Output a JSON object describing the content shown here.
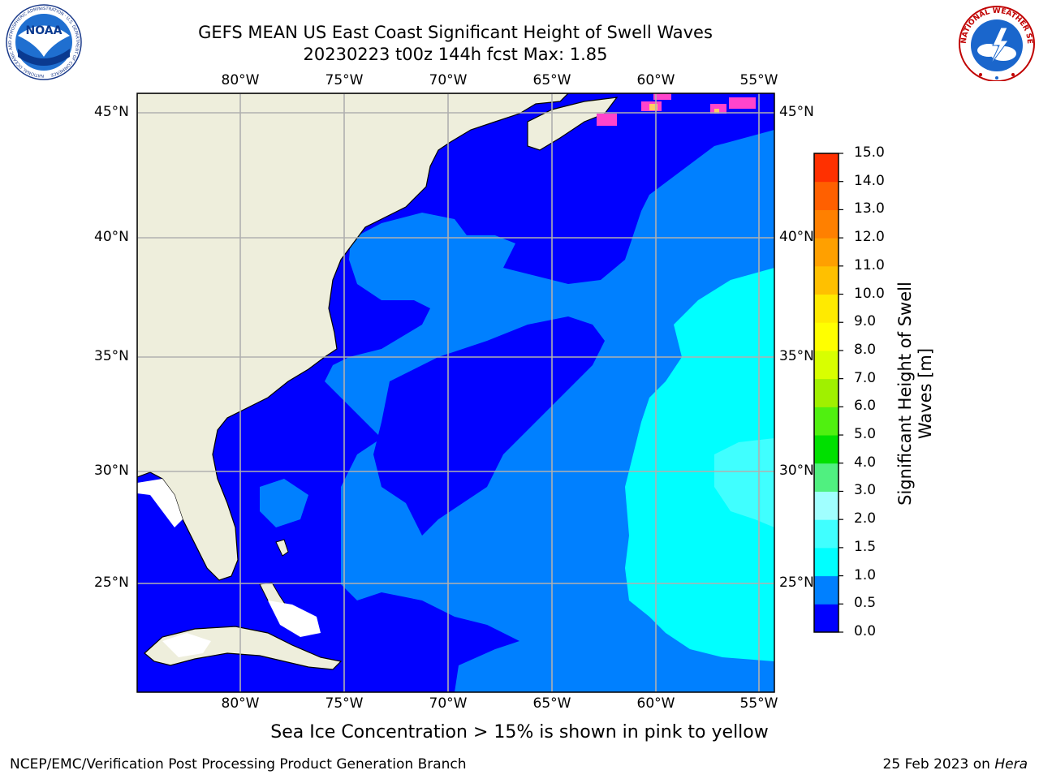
{
  "title_line1": "GEFS MEAN US East Coast Significant Height of Swell Waves",
  "title_line2": "20230223 t00z 144h fcst   Max: 1.85",
  "noaa_logo_text": "NOAA",
  "noaa_ring_text": "NATIONAL OCEANIC AND ATMOSPHERIC ADMINISTRATION · U.S. DEPARTMENT OF COMMERCE",
  "nws_ring_text": "NATIONAL WEATHER SERVICE",
  "lon_labels": [
    "80°W",
    "75°W",
    "70°W",
    "65°W",
    "60°W",
    "55°W"
  ],
  "lat_labels": [
    "45°N",
    "40°N",
    "35°N",
    "30°N",
    "25°N"
  ],
  "colorbar": {
    "title_line1": "Significant Height of Swell",
    "title_line2": "Waves [m]",
    "ticks": [
      "0.0",
      "0.5",
      "1.0",
      "1.5",
      "2.0",
      "3.0",
      "4.0",
      "5.0",
      "6.0",
      "7.0",
      "8.0",
      "9.0",
      "10.0",
      "11.0",
      "12.0",
      "13.0",
      "14.0",
      "15.0"
    ],
    "colors": [
      "#0000ff",
      "#0080ff",
      "#00ffff",
      "#40ffff",
      "#a0ffff",
      "#50f080",
      "#00e000",
      "#50f010",
      "#a0f000",
      "#d8ff00",
      "#ffff00",
      "#ffea00",
      "#ffc000",
      "#ffa000",
      "#ff8000",
      "#ff6000",
      "#ff3000"
    ]
  },
  "caption": "Sea Ice Concentration > 15% is shown in pink to yellow",
  "footer_left": "NCEP/EMC/Verification Post Processing Product Generation Branch",
  "footer_date": "25 Feb 2023 on",
  "footer_host": "Hera",
  "map_colors": {
    "land": "#eeeedc",
    "ocean_0_05": "#0000ff",
    "ocean_05_1": "#0080ff",
    "ocean_1_15": "#00ffff",
    "ocean_15_2": "#40ffff",
    "grid": "#b0b0b0",
    "ice": "#ff44cc"
  }
}
